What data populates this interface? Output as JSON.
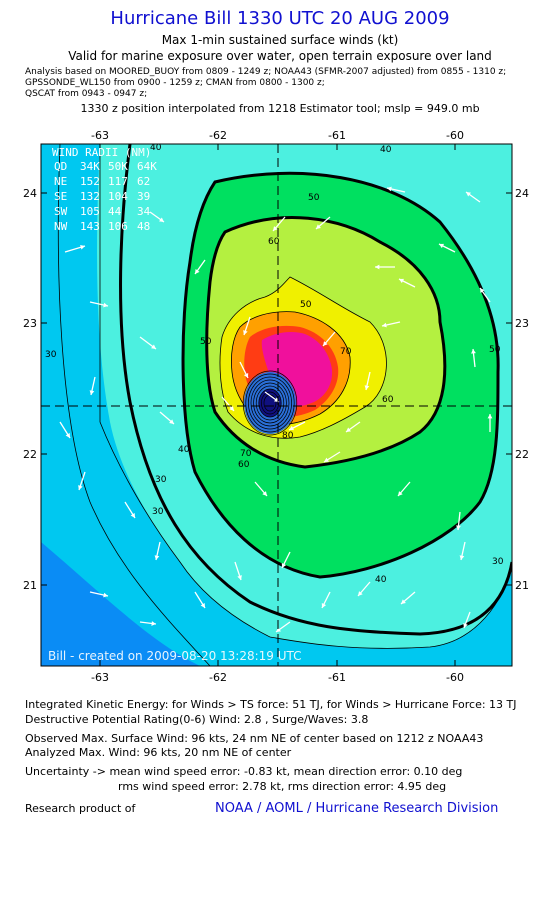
{
  "title": "Hurricane Bill 1330 UTC 20 AUG 2009",
  "subtitle1": "Max 1-min sustained surface winds (kt)",
  "subtitle2": "Valid for marine exposure over water, open terrain exposure over land",
  "analysis_lines": [
    "Analysis based on  MOORED_BUOY from 0809 - 1249 z;  NOAA43 (SFMR-2007 adjusted) from 0855 - 1310 z;",
    "GPSSONDE_WL150 from 0900 - 1259 z;  CMAN from 0800 - 1300 z;",
    "QSCAT from 0943 - 0947 z;"
  ],
  "position_note": "1330 z position interpolated from 1218 Estimator tool; mslp = 949.0 mb",
  "map": {
    "lon_labels": [
      "-63",
      "-62",
      "-61",
      "-60"
    ],
    "lat_labels": [
      "24",
      "23",
      "22",
      "21"
    ],
    "watermark": "Bill - created on 2009-08-20 13:28:19 UTC",
    "contour_labels": [
      "30",
      "40",
      "50",
      "60",
      "70",
      "80",
      "40",
      "50",
      "30",
      "60",
      "70",
      "50",
      "60",
      "40",
      "30",
      "40",
      "30",
      "50"
    ],
    "colors": {
      "ocean": "#0a8cf5",
      "c30": "#00c8f0",
      "c40": "#4cf0e0",
      "c50": "#00e060",
      "c60": "#b4f040",
      "c70": "#f0f000",
      "c80": "#ffa000",
      "c90": "#ff3c14",
      "c100": "#f0109c",
      "eye": "#101080"
    }
  },
  "wind_radii": {
    "title": "WIND RADII (NM)",
    "header": [
      "QD",
      "34K",
      "50K",
      "64K"
    ],
    "rows": [
      [
        "NE",
        "152",
        "117",
        "62"
      ],
      [
        "SE",
        "132",
        "104",
        "39"
      ],
      [
        "SW",
        "105",
        "44",
        "34"
      ],
      [
        "NW",
        "143",
        "106",
        "48"
      ]
    ]
  },
  "footer": {
    "ike": "Integrated Kinetic Energy:  for Winds > TS force: 51 TJ,  for Winds > Hurricane Force: 13 TJ",
    "dpr": "Destructive Potential Rating(0-6)   Wind: 2.8 , Surge/Waves: 3.8",
    "observed": "Observed Max. Surface Wind: 96 kts, 24 nm NE of center based on 1212 z NOAA43",
    "analyzed": "Analyzed Max. Wind: 96 kts, 20 nm NE of center",
    "uncertainty1": "Uncertainty -> mean wind speed error:  -0.83 kt,   mean direction error: 0.10 deg",
    "uncertainty2": "rms wind speed error: 2.78 kt,   rms direction error: 4.95 deg",
    "research": "Research product of",
    "credit": "NOAA / AOML / Hurricane Research Division"
  }
}
